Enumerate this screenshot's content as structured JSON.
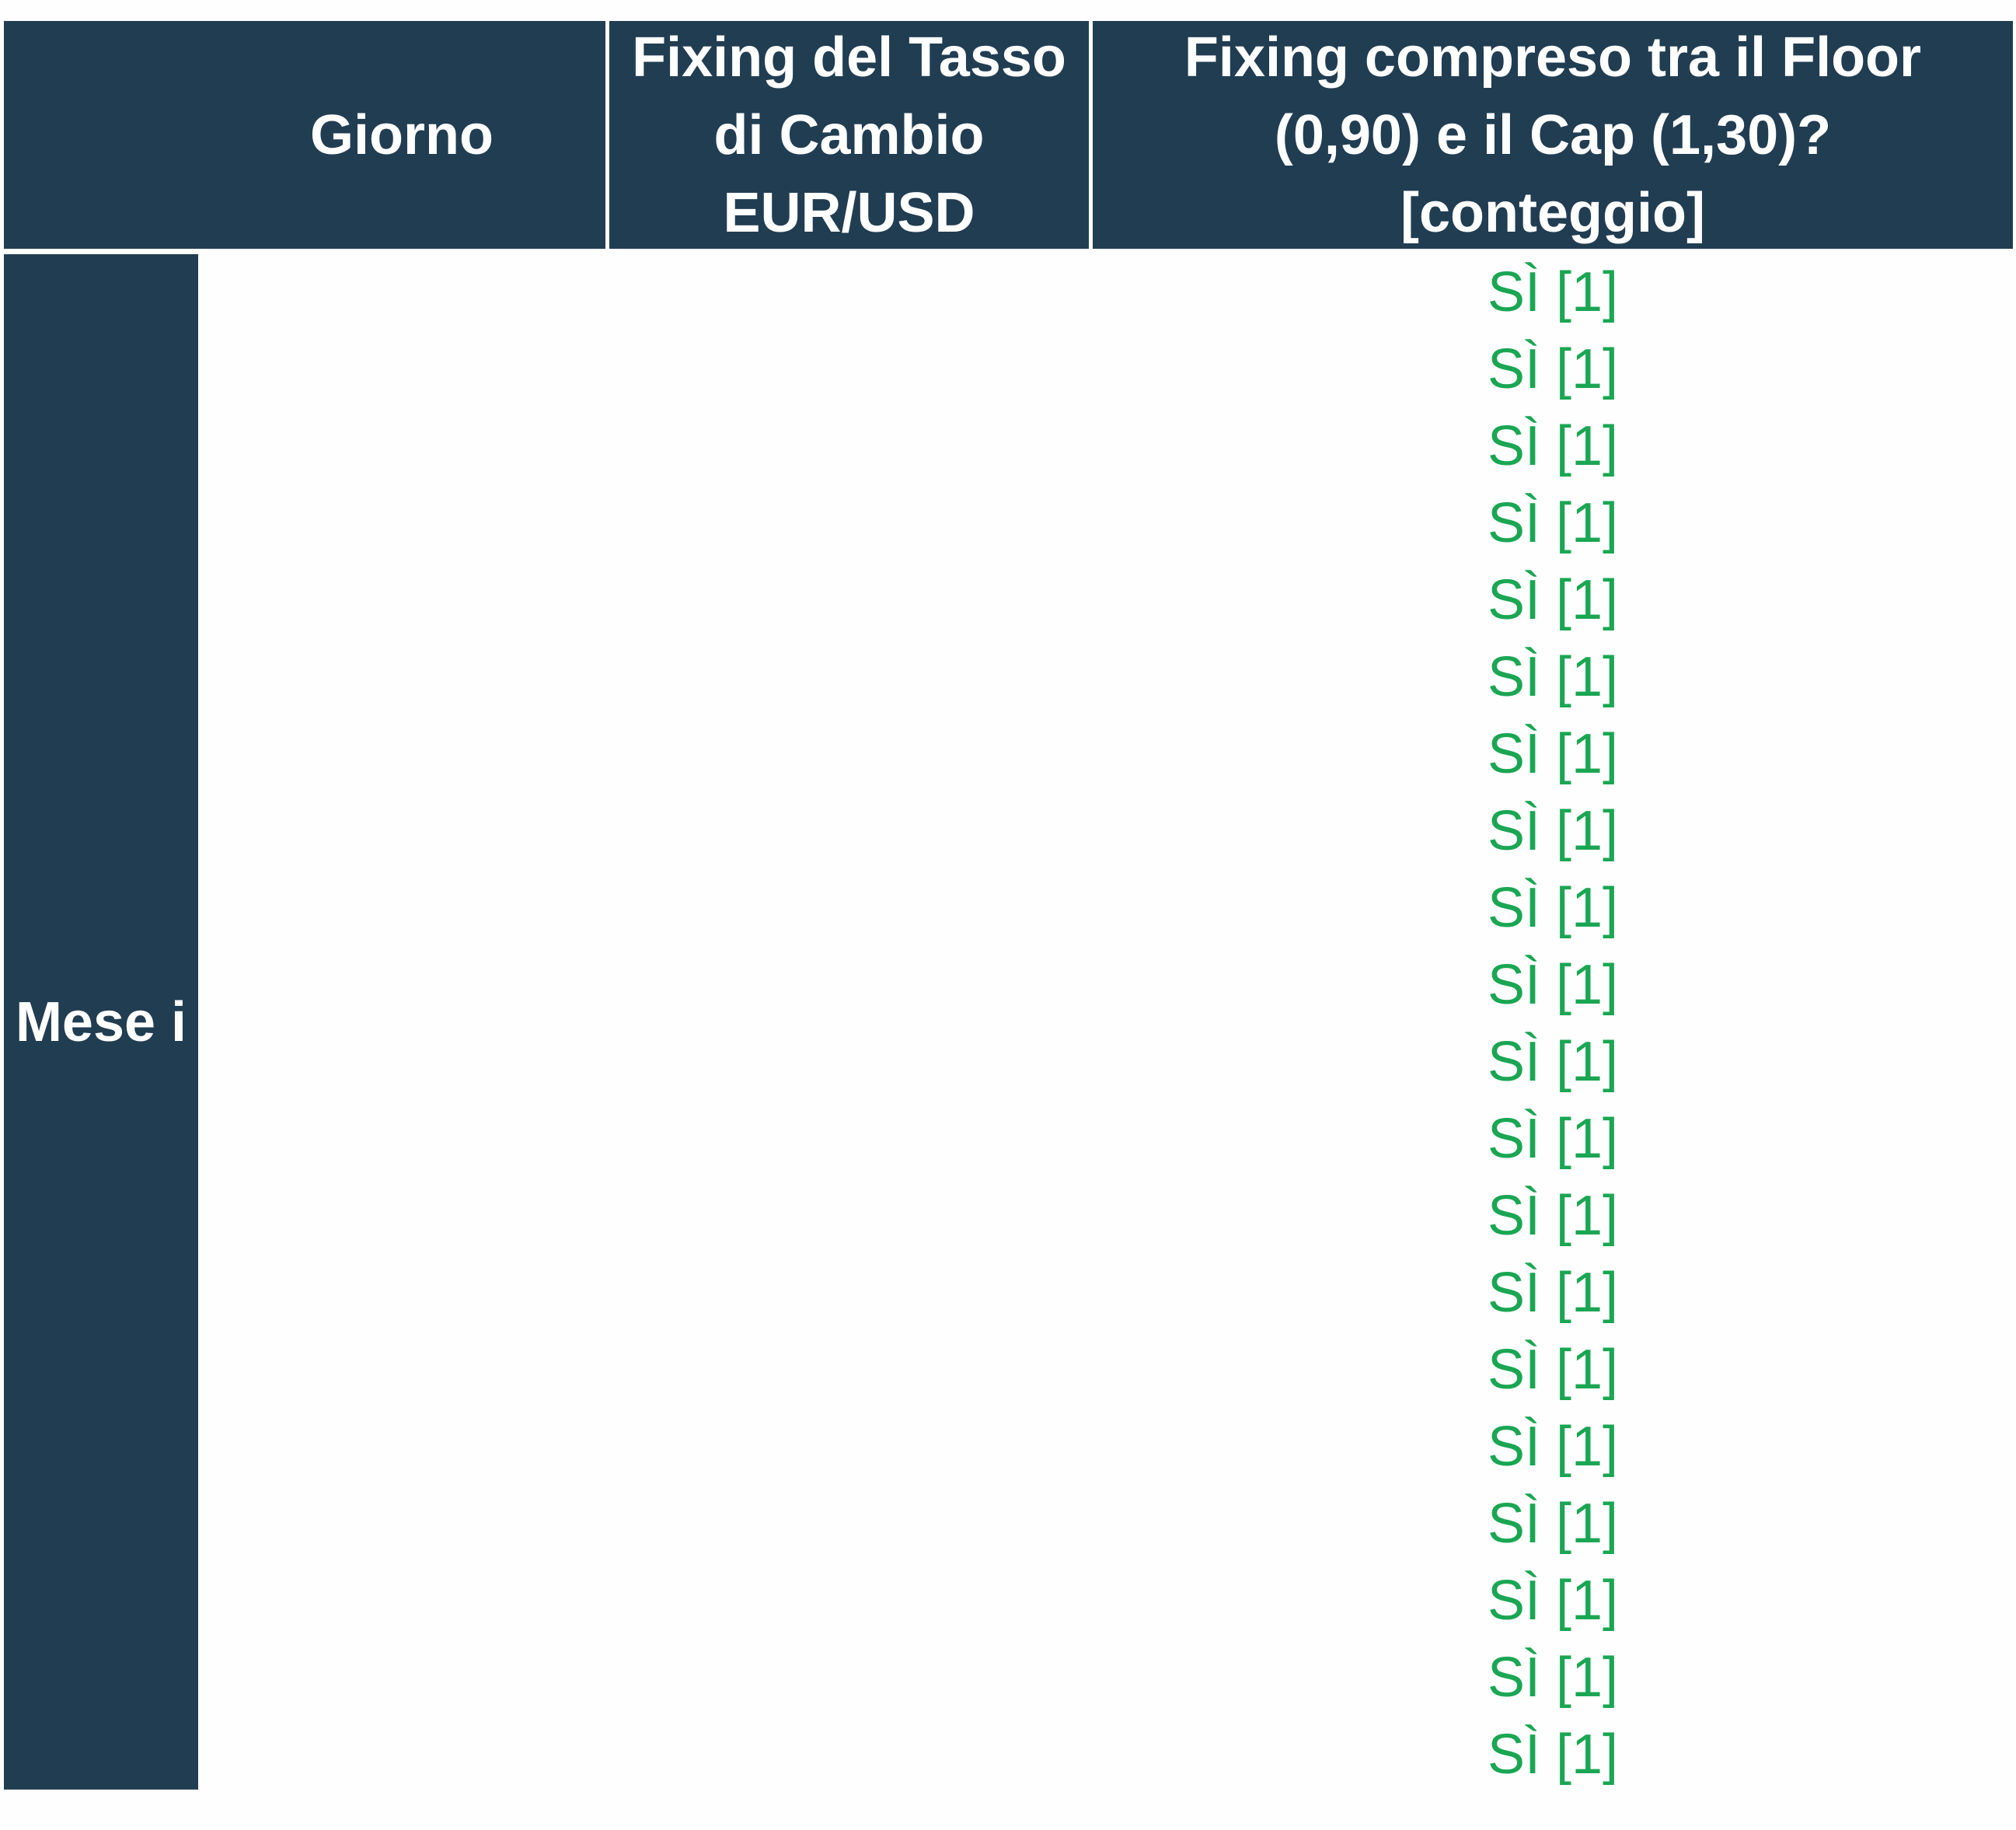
{
  "header": {
    "giorno": "Giorno",
    "fixing_lines": [
      "Fixing del Tasso",
      "di Cambio",
      "EUR/USD"
    ],
    "count_lines": [
      "Fixing compreso tra il Floor",
      "(0,90) e il Cap (1,30)?",
      "[conteggio]"
    ]
  },
  "month_label": "Mese i",
  "rows": [
    "SÌ [1]",
    "SÌ [1]",
    "SÌ [1]",
    "SÌ [1]",
    "SÌ [1]",
    "SÌ [1]",
    "SÌ [1]",
    "SÌ [1]",
    "SÌ [1]",
    "SÌ [1]",
    "SÌ [1]",
    "SÌ [1]",
    "SÌ [1]",
    "SÌ [1]",
    "SÌ [1]",
    "SÌ [1]",
    "SÌ [1]",
    "SÌ [1]",
    "SÌ [1]",
    "SÌ [1]"
  ],
  "colors": {
    "header_bg": "#213d52",
    "header_text": "#ffffff",
    "yes_text": "#1aa653"
  }
}
